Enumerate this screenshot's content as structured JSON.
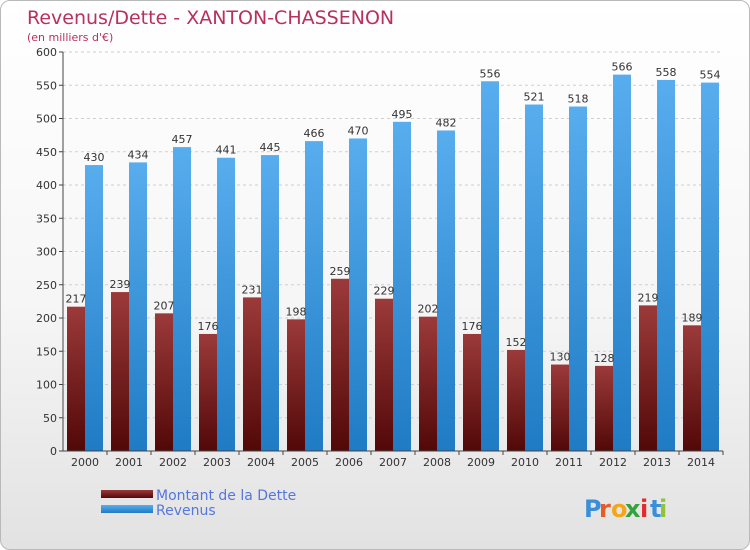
{
  "chart_data": {
    "type": "bar",
    "title": "Revenus/Dette - XANTON-CHASSENON",
    "subtitle": "(en milliers d'€)",
    "categories": [
      "2000",
      "2001",
      "2002",
      "2003",
      "2004",
      "2005",
      "2006",
      "2007",
      "2008",
      "2009",
      "2010",
      "2011",
      "2012",
      "2013",
      "2014"
    ],
    "series": [
      {
        "name": "Montant de la Dette",
        "color": "#8b2a2a",
        "values": [
          217,
          239,
          207,
          176,
          231,
          198,
          259,
          229,
          202,
          176,
          152,
          130,
          128,
          219,
          189
        ]
      },
      {
        "name": "Revenus",
        "color": "#3a97df",
        "values": [
          430,
          434,
          457,
          441,
          445,
          466,
          470,
          495,
          482,
          556,
          521,
          518,
          566,
          558,
          554
        ]
      }
    ],
    "ylim": [
      0,
      600
    ],
    "yticks": [
      0,
      50,
      100,
      150,
      200,
      250,
      300,
      350,
      400,
      450,
      500,
      550,
      600
    ],
    "grid": true,
    "legend": "bottom-left"
  },
  "brand": {
    "letters": [
      "P",
      "r",
      "o",
      "x",
      "i",
      "t",
      "i"
    ],
    "colors": [
      "#3a8fd8",
      "#e85a26",
      "#f3a51c",
      "#33a33c",
      "#e32b2b",
      "#3a8fd8",
      "#8fc33a"
    ]
  }
}
